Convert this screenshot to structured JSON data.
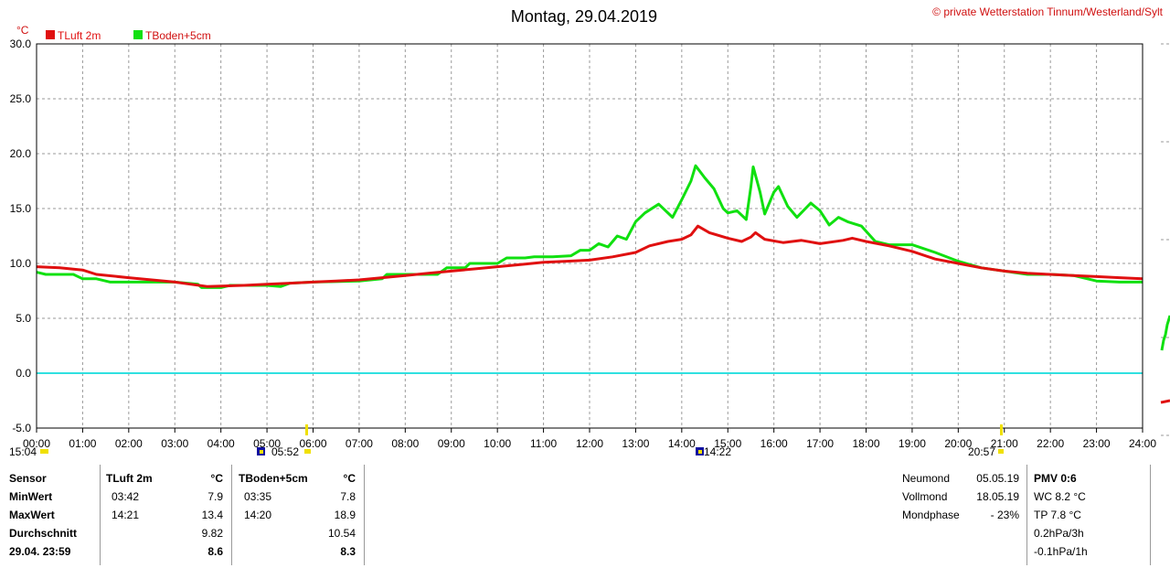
{
  "header": {
    "title": "Montag, 29.04.2019",
    "copyright": "© private Wetterstation Tinnum/Westerland/Sylt",
    "unit": "°C"
  },
  "legend": [
    {
      "name": "TLuft 2m",
      "color": "#e01010"
    },
    {
      "name": "TBoden+5cm",
      "color": "#10e010"
    }
  ],
  "chart_data": {
    "type": "line",
    "ylim": [
      -5,
      30
    ],
    "y_ticks": [
      "30.0",
      "25.0",
      "20.0",
      "15.0",
      "10.0",
      "5.0",
      "0.0",
      "-5.0"
    ],
    "x_ticks": [
      "00:00",
      "01:00",
      "02:00",
      "03:00",
      "04:00",
      "05:00",
      "06:00",
      "07:00",
      "08:00",
      "09:00",
      "10:00",
      "11:00",
      "12:00",
      "13:00",
      "14:00",
      "15:00",
      "16:00",
      "17:00",
      "18:00",
      "19:00",
      "20:00",
      "21:00",
      "22:00",
      "23:00",
      "24:00"
    ],
    "xlim_hours": [
      0,
      24
    ],
    "grid": true,
    "zero_line_color": "#30e0e0",
    "series": [
      {
        "name": "TLuft 2m",
        "color": "#e01010",
        "points": [
          [
            0,
            9.7
          ],
          [
            0.5,
            9.6
          ],
          [
            1.0,
            9.4
          ],
          [
            1.3,
            9.0
          ],
          [
            2.0,
            8.7
          ],
          [
            2.5,
            8.5
          ],
          [
            3.0,
            8.3
          ],
          [
            3.7,
            7.9
          ],
          [
            4.5,
            8.0
          ],
          [
            5.0,
            8.1
          ],
          [
            5.5,
            8.2
          ],
          [
            6.0,
            8.3
          ],
          [
            6.5,
            8.4
          ],
          [
            7.0,
            8.5
          ],
          [
            7.5,
            8.7
          ],
          [
            8.0,
            8.9
          ],
          [
            8.5,
            9.1
          ],
          [
            9.0,
            9.3
          ],
          [
            9.5,
            9.5
          ],
          [
            10.0,
            9.7
          ],
          [
            10.5,
            9.9
          ],
          [
            11.0,
            10.1
          ],
          [
            11.5,
            10.2
          ],
          [
            12.0,
            10.3
          ],
          [
            12.5,
            10.6
          ],
          [
            13.0,
            11.0
          ],
          [
            13.3,
            11.6
          ],
          [
            13.7,
            12.0
          ],
          [
            14.0,
            12.2
          ],
          [
            14.2,
            12.6
          ],
          [
            14.35,
            13.4
          ],
          [
            14.6,
            12.8
          ],
          [
            15.0,
            12.3
          ],
          [
            15.3,
            12.0
          ],
          [
            15.5,
            12.4
          ],
          [
            15.6,
            12.8
          ],
          [
            15.8,
            12.2
          ],
          [
            16.2,
            11.9
          ],
          [
            16.6,
            12.1
          ],
          [
            17.0,
            11.8
          ],
          [
            17.5,
            12.1
          ],
          [
            17.7,
            12.3
          ],
          [
            18.0,
            12.0
          ],
          [
            18.5,
            11.6
          ],
          [
            19.0,
            11.1
          ],
          [
            19.5,
            10.4
          ],
          [
            20.0,
            10.0
          ],
          [
            20.5,
            9.6
          ],
          [
            21.0,
            9.3
          ],
          [
            21.5,
            9.1
          ],
          [
            22.0,
            9.0
          ],
          [
            22.5,
            8.9
          ],
          [
            23.0,
            8.8
          ],
          [
            23.5,
            8.7
          ],
          [
            24.0,
            8.6
          ]
        ]
      },
      {
        "name": "TBoden+5cm",
        "color": "#10e010",
        "points": [
          [
            0,
            9.2
          ],
          [
            0.2,
            9.0
          ],
          [
            0.8,
            9.0
          ],
          [
            1.0,
            8.6
          ],
          [
            1.3,
            8.6
          ],
          [
            1.6,
            8.3
          ],
          [
            2.0,
            8.3
          ],
          [
            3.0,
            8.3
          ],
          [
            3.5,
            8.1
          ],
          [
            3.58,
            7.8
          ],
          [
            4.0,
            7.8
          ],
          [
            4.2,
            8.0
          ],
          [
            5.0,
            8.0
          ],
          [
            5.3,
            7.9
          ],
          [
            5.5,
            8.2
          ],
          [
            6.0,
            8.3
          ],
          [
            7.0,
            8.4
          ],
          [
            7.5,
            8.6
          ],
          [
            7.6,
            9.0
          ],
          [
            8.7,
            9.0
          ],
          [
            8.9,
            9.6
          ],
          [
            9.3,
            9.6
          ],
          [
            9.4,
            10.0
          ],
          [
            10.0,
            10.0
          ],
          [
            10.2,
            10.5
          ],
          [
            10.6,
            10.5
          ],
          [
            10.8,
            10.6
          ],
          [
            11.2,
            10.6
          ],
          [
            11.6,
            10.7
          ],
          [
            11.8,
            11.2
          ],
          [
            12.0,
            11.2
          ],
          [
            12.2,
            11.8
          ],
          [
            12.4,
            11.5
          ],
          [
            12.6,
            12.5
          ],
          [
            12.8,
            12.2
          ],
          [
            13.0,
            13.8
          ],
          [
            13.2,
            14.6
          ],
          [
            13.5,
            15.4
          ],
          [
            13.8,
            14.2
          ],
          [
            14.0,
            15.8
          ],
          [
            14.2,
            17.5
          ],
          [
            14.3,
            18.9
          ],
          [
            14.5,
            17.8
          ],
          [
            14.7,
            16.8
          ],
          [
            14.9,
            15.0
          ],
          [
            15.0,
            14.6
          ],
          [
            15.2,
            14.8
          ],
          [
            15.4,
            14.0
          ],
          [
            15.5,
            17.0
          ],
          [
            15.55,
            18.8
          ],
          [
            15.7,
            16.5
          ],
          [
            15.8,
            14.5
          ],
          [
            16.0,
            16.5
          ],
          [
            16.1,
            17.0
          ],
          [
            16.3,
            15.2
          ],
          [
            16.5,
            14.2
          ],
          [
            16.8,
            15.5
          ],
          [
            17.0,
            14.8
          ],
          [
            17.2,
            13.5
          ],
          [
            17.4,
            14.2
          ],
          [
            17.6,
            13.8
          ],
          [
            17.9,
            13.4
          ],
          [
            18.2,
            12.0
          ],
          [
            18.5,
            11.7
          ],
          [
            19.0,
            11.7
          ],
          [
            19.5,
            11.0
          ],
          [
            20.0,
            10.2
          ],
          [
            20.5,
            9.6
          ],
          [
            21.0,
            9.3
          ],
          [
            21.5,
            9.0
          ],
          [
            22.0,
            9.0
          ],
          [
            22.5,
            8.9
          ],
          [
            23.0,
            8.4
          ],
          [
            23.5,
            8.3
          ],
          [
            24.0,
            8.3
          ]
        ]
      }
    ]
  },
  "markers": {
    "sun_moon_times": [
      "15:04",
      "05:52",
      "14:22",
      "20:57"
    ]
  },
  "stats": {
    "labels": [
      "Sensor",
      "MinWert",
      "MaxWert",
      "Durchschnitt",
      "29.04. 23:59"
    ],
    "tluft": {
      "header": "TLuft 2m",
      "unit": "°C",
      "min_time": "03:42",
      "min": "7.9",
      "max_time": "14:21",
      "max": "13.4",
      "avg": "9.82",
      "last": "8.6"
    },
    "tboden": {
      "header": "TBoden+5cm",
      "unit": "°C",
      "min_time": "03:35",
      "min": "7.8",
      "max_time": "14:20",
      "max": "18.9",
      "avg": "10.54",
      "last": "8.3"
    }
  },
  "moon": {
    "rows": [
      {
        "label": "Neumond",
        "value": "05.05.19"
      },
      {
        "label": "Vollmond",
        "value": "18.05.19"
      },
      {
        "label": "Mondphase",
        "value": "- 23%"
      }
    ]
  },
  "pmv": {
    "title": "PMV 0:6",
    "lines": [
      "WC 8.2 °C",
      "TP 7.8 °C",
      "0.2hPa/3h",
      "-0.1hPa/1h"
    ]
  }
}
